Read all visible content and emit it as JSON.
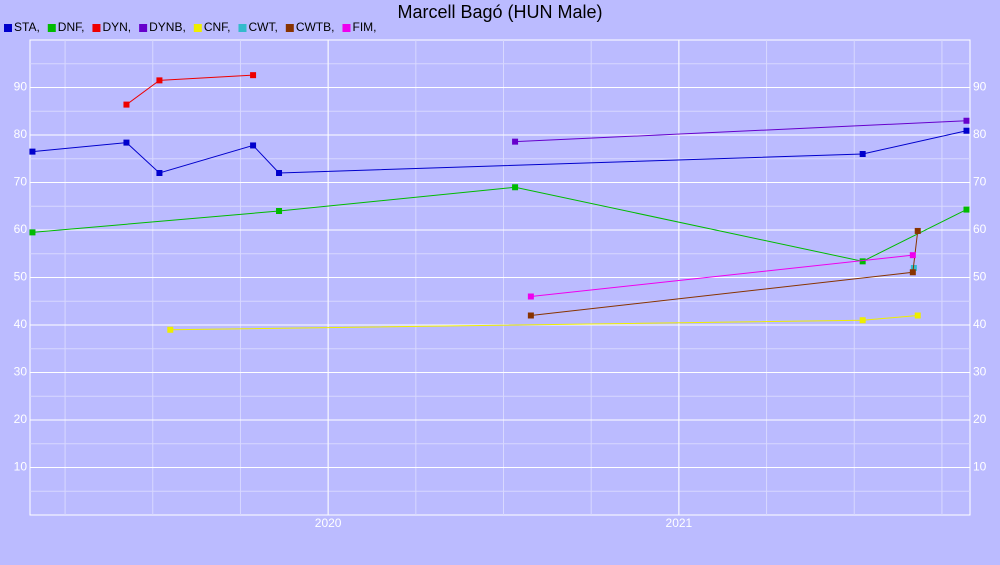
{
  "chart_data": {
    "type": "line",
    "title": "Marcell Bagó (HUN Male)",
    "xlim": [
      2019.15,
      2021.83
    ],
    "xticks": [
      2020,
      2021
    ],
    "ylim": [
      0,
      100
    ],
    "yticks": [
      10,
      20,
      30,
      40,
      50,
      60,
      70,
      80,
      90
    ],
    "grid": true,
    "legend": "top-left",
    "series": [
      {
        "name": "STA,",
        "color": "#0000cc",
        "x": [
          2019.157,
          2019.425,
          2019.519,
          2019.786,
          2019.86,
          2021.524,
          2021.82
        ],
        "values": [
          76.5,
          78.4,
          72,
          77.8,
          72,
          76,
          80.9
        ]
      },
      {
        "name": "DNF,",
        "color": "#00bb00",
        "x": [
          2019.157,
          2019.86,
          2020.533,
          2021.524,
          2021.82
        ],
        "values": [
          59.5,
          64,
          69,
          53.4,
          64.3
        ]
      },
      {
        "name": "DYN,",
        "color": "#ee0000",
        "x": [
          2019.425,
          2019.519,
          2019.786
        ],
        "values": [
          86.4,
          91.5,
          92.6
        ]
      },
      {
        "name": "DYNB,",
        "color": "#6600cc",
        "x": [
          2020.533,
          2021.82
        ],
        "values": [
          78.6,
          83
        ]
      },
      {
        "name": "CNF,",
        "color": "#eeee00",
        "x": [
          2019.55,
          2021.524,
          2021.681
        ],
        "values": [
          39,
          41,
          42
        ]
      },
      {
        "name": "CWT,",
        "color": "#33bbcc",
        "x": [
          2021.67
        ],
        "values": [
          52
        ]
      },
      {
        "name": "CWTB,",
        "color": "#883300",
        "x": [
          2020.578,
          2021.667,
          2021.681
        ],
        "values": [
          42,
          51.1,
          59.8
        ]
      },
      {
        "name": "FIM,",
        "color": "#ee00ee",
        "x": [
          2020.578,
          2021.667
        ],
        "values": [
          46,
          54.7
        ]
      }
    ]
  }
}
